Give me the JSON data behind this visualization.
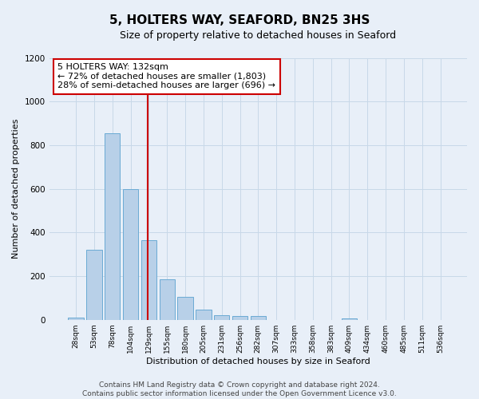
{
  "title": "5, HOLTERS WAY, SEAFORD, BN25 3HS",
  "subtitle": "Size of property relative to detached houses in Seaford",
  "xlabel": "Distribution of detached houses by size in Seaford",
  "ylabel": "Number of detached properties",
  "bar_labels": [
    "28sqm",
    "53sqm",
    "78sqm",
    "104sqm",
    "129sqm",
    "155sqm",
    "180sqm",
    "205sqm",
    "231sqm",
    "256sqm",
    "282sqm",
    "307sqm",
    "333sqm",
    "358sqm",
    "383sqm",
    "409sqm",
    "434sqm",
    "460sqm",
    "485sqm",
    "511sqm",
    "536sqm"
  ],
  "bar_values": [
    10,
    320,
    855,
    600,
    365,
    185,
    105,
    45,
    20,
    18,
    18,
    0,
    0,
    0,
    0,
    8,
    0,
    0,
    0,
    0,
    0
  ],
  "bar_color": "#b8d0e8",
  "bar_edgecolor": "#6aaad4",
  "background_color": "#e8eff8",
  "plot_bg_color": "#e8eff8",
  "grid_color": "#c8d8e8",
  "vline_color": "#cc0000",
  "annotation_line1": "5 HOLTERS WAY: 132sqm",
  "annotation_line2": "← 72% of detached houses are smaller (1,803)",
  "annotation_line3": "28% of semi-detached houses are larger (696) →",
  "annotation_box_edgecolor": "#cc0000",
  "annotation_box_facecolor": "#ffffff",
  "ylim": [
    0,
    1200
  ],
  "yticks": [
    0,
    200,
    400,
    600,
    800,
    1000,
    1200
  ],
  "footer_line1": "Contains HM Land Registry data © Crown copyright and database right 2024.",
  "footer_line2": "Contains public sector information licensed under the Open Government Licence v3.0.",
  "title_fontsize": 11,
  "subtitle_fontsize": 9,
  "annotation_fontsize": 8,
  "footer_fontsize": 6.5,
  "ylabel_fontsize": 8,
  "xlabel_fontsize": 8,
  "ytick_fontsize": 7.5,
  "xtick_fontsize": 6.5
}
